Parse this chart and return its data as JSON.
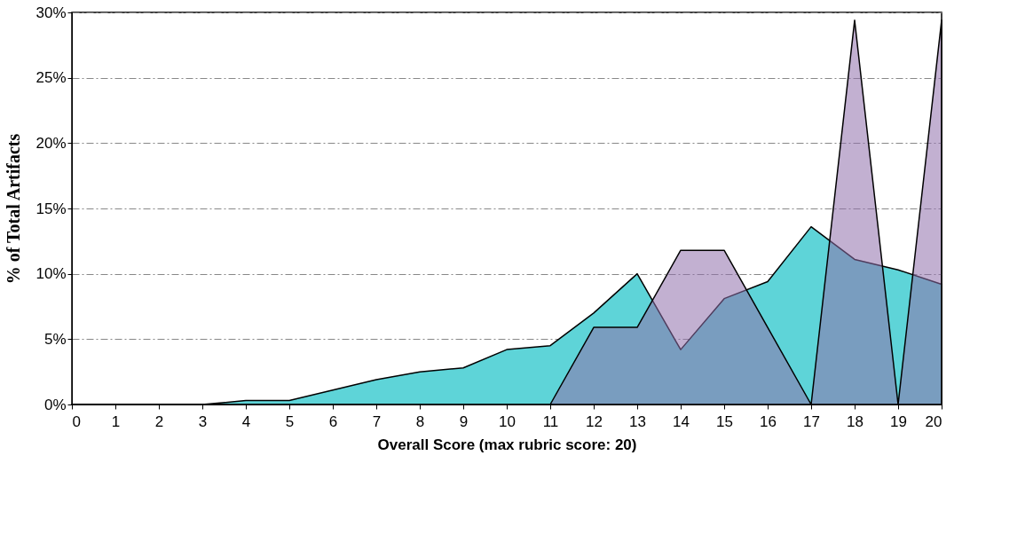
{
  "chart_data": {
    "type": "area",
    "xlabel": "Overall Score (max rubric score: 20)",
    "ylabel": "% of Total Artifacts",
    "x": [
      0,
      1,
      2,
      3,
      4,
      5,
      6,
      7,
      8,
      9,
      10,
      11,
      12,
      13,
      14,
      15,
      16,
      17,
      18,
      19,
      20
    ],
    "series": [
      {
        "color": "#5ed4d8",
        "values": [
          0,
          0,
          0,
          0,
          0.3,
          0.3,
          1.1,
          1.9,
          2.5,
          2.8,
          4.2,
          4.5,
          7.0,
          10.0,
          4.2,
          8.1,
          9.4,
          13.6,
          11.1,
          10.3,
          9.2
        ]
      },
      {
        "color": "#8f6fab",
        "values": [
          0,
          0,
          0,
          0,
          0,
          0,
          0,
          0,
          0,
          0,
          0,
          0,
          5.9,
          5.9,
          11.8,
          11.8,
          5.9,
          0,
          29.4,
          0,
          29.4
        ]
      }
    ],
    "xlim": [
      0,
      20
    ],
    "xticks": [
      0,
      1,
      2,
      3,
      4,
      5,
      6,
      7,
      8,
      9,
      10,
      11,
      12,
      13,
      14,
      15,
      16,
      17,
      18,
      19,
      20
    ],
    "ylim": [
      0,
      30
    ],
    "yticks": [
      {
        "value": 0,
        "label": "0%"
      },
      {
        "value": 5,
        "label": "5%"
      },
      {
        "value": 10,
        "label": "10%"
      },
      {
        "value": 15,
        "label": "15%"
      },
      {
        "value": 20,
        "label": "20%"
      },
      {
        "value": 25,
        "label": "25%"
      },
      {
        "value": 30,
        "label": "30%"
      }
    ],
    "grid": "y"
  }
}
